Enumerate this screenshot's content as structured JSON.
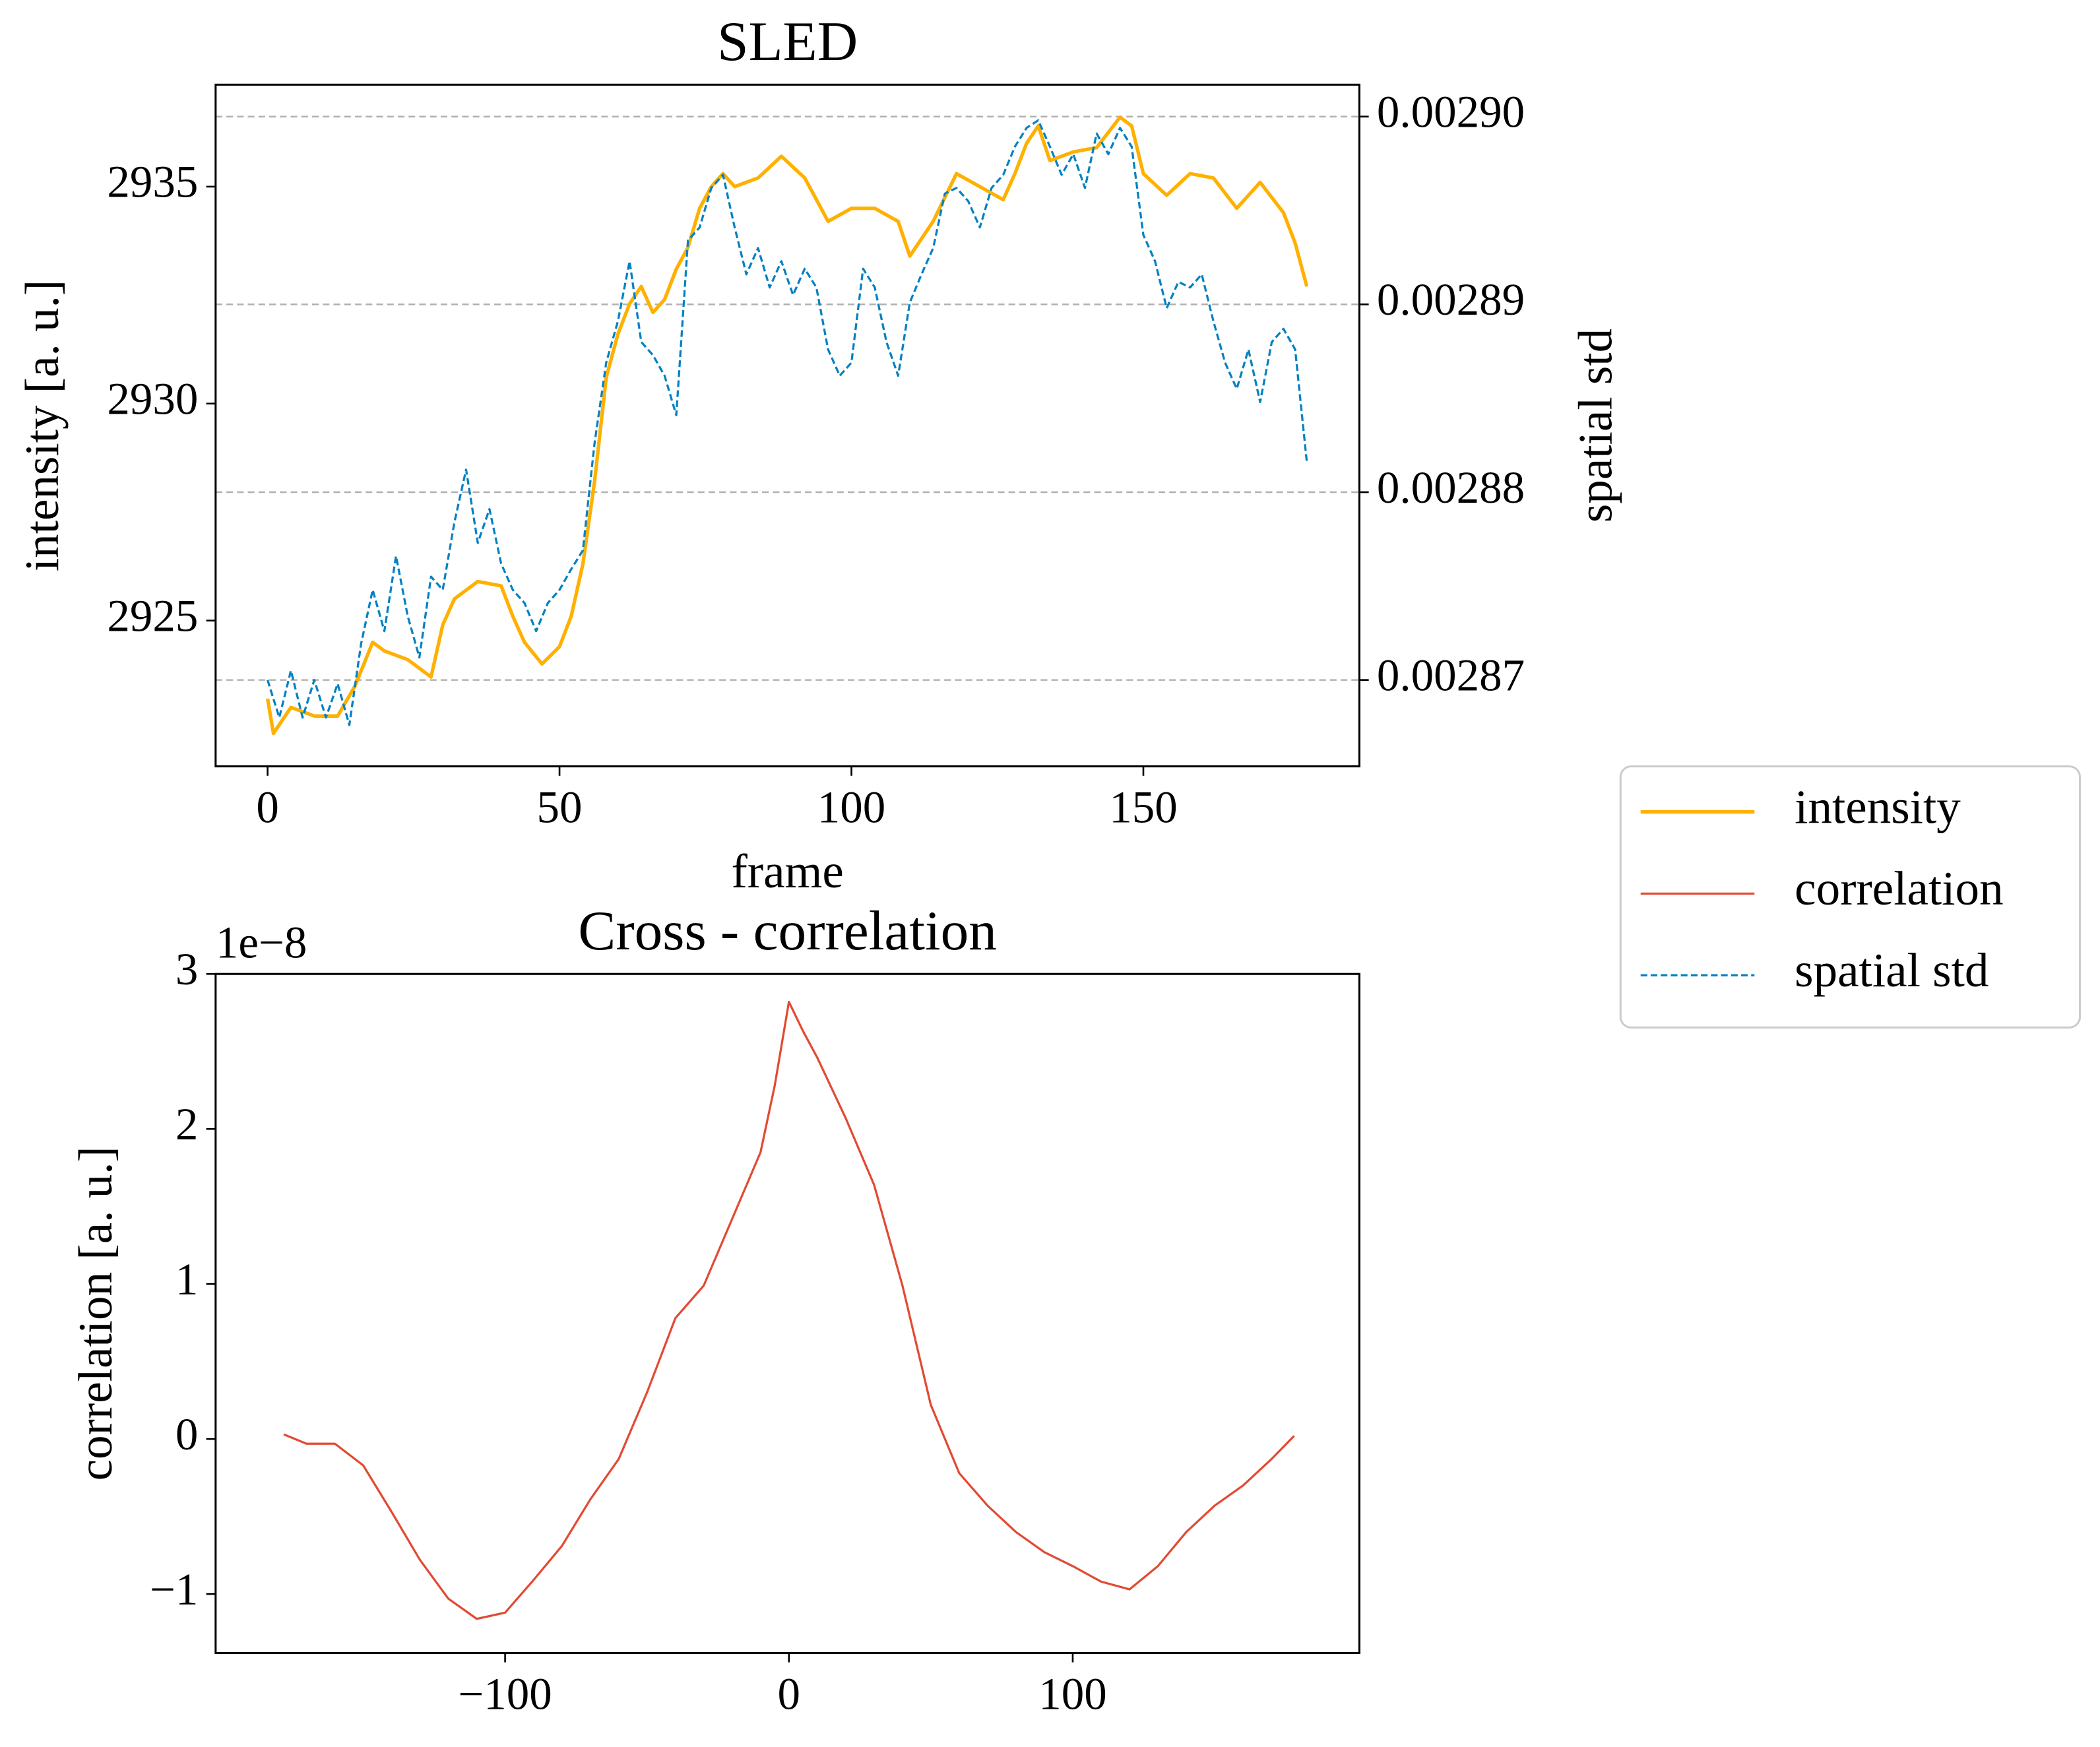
{
  "chart_data": [
    {
      "type": "line",
      "title": "SLED",
      "xlabel": "frame",
      "ylabel": "intensity [a. u.]",
      "y2label": "spatial std",
      "xlim": [
        -8.9,
        187
      ],
      "xticks": [
        0,
        50,
        100,
        150
      ],
      "ylim": [
        2921.64,
        2937.35
      ],
      "yticks": [
        2925,
        2930,
        2935
      ],
      "y2lim": [
        0.0028654,
        0.0029017
      ],
      "y2ticks": [
        {
          "value": 0.0029,
          "label": "0.00290"
        },
        0.00289,
        0.00288,
        0.00287
      ],
      "grid": "y2",
      "legend": "outside right",
      "series": [
        {
          "name": "intensity",
          "color": "#ffb000",
          "linestyle": "solid",
          "linewidth": 2.6,
          "x": [
            0,
            1,
            4,
            8,
            12,
            15,
            18,
            20,
            24,
            28,
            30,
            32,
            36,
            40,
            42,
            44,
            47,
            50,
            52,
            54,
            56,
            58,
            60,
            62,
            64,
            66,
            68,
            70,
            72,
            74,
            76,
            78,
            80,
            84,
            88,
            92,
            96,
            100,
            104,
            108,
            110,
            114,
            118,
            122,
            126,
            128,
            130,
            132,
            134,
            138,
            142,
            146,
            148,
            150,
            154,
            158,
            162,
            166,
            170,
            174,
            176,
            178
          ],
          "values": [
            2923.2,
            2922.4,
            2923.0,
            2922.8,
            2922.8,
            2923.5,
            2924.5,
            2924.3,
            2924.1,
            2923.7,
            2924.9,
            2925.5,
            2925.9,
            2925.8,
            2925.1,
            2924.5,
            2924.0,
            2924.4,
            2925.1,
            2926.3,
            2928.2,
            2930.6,
            2931.6,
            2932.3,
            2932.7,
            2932.1,
            2932.4,
            2933.1,
            2933.6,
            2934.5,
            2935.0,
            2935.3,
            2935.0,
            2935.2,
            2935.7,
            2935.2,
            2934.2,
            2934.5,
            2934.5,
            2934.2,
            2933.4,
            2934.2,
            2935.3,
            2935.0,
            2934.7,
            2935.3,
            2936.0,
            2936.4,
            2935.6,
            2935.8,
            2935.9,
            2936.6,
            2936.4,
            2935.3,
            2934.8,
            2935.3,
            2935.2,
            2934.5,
            2935.1,
            2934.4,
            2933.7,
            2932.7
          ]
        },
        {
          "name": "spatial std",
          "color": "#0081c3",
          "linestyle": "dashed",
          "linewidth": 1.6,
          "axis": "y2",
          "x": [
            0,
            2,
            4,
            6,
            8,
            10,
            12,
            14,
            16,
            18,
            20,
            22,
            24,
            26,
            28,
            30,
            32,
            34,
            36,
            38,
            40,
            42,
            44,
            46,
            48,
            50,
            52,
            54,
            56,
            58,
            60,
            62,
            64,
            66,
            68,
            70,
            72,
            74,
            76,
            78,
            80,
            82,
            84,
            86,
            88,
            90,
            92,
            94,
            96,
            98,
            100,
            102,
            104,
            106,
            108,
            110,
            112,
            114,
            116,
            118,
            120,
            122,
            124,
            126,
            128,
            130,
            132,
            134,
            136,
            138,
            140,
            142,
            144,
            146,
            148,
            150,
            152,
            154,
            156,
            158,
            160,
            162,
            164,
            166,
            168,
            170,
            172,
            174,
            176,
            178
          ],
          "values": [
            0.00287,
            0.002868,
            0.0028705,
            0.002868,
            0.00287,
            0.002868,
            0.0028698,
            0.0028676,
            0.0028719,
            0.0028748,
            0.0028726,
            0.0028766,
            0.0028734,
            0.0028712,
            0.0028755,
            0.0028748,
            0.0028784,
            0.0028812,
            0.0028773,
            0.0028791,
            0.0028762,
            0.0028748,
            0.0028741,
            0.0028726,
            0.0028741,
            0.0028748,
            0.0028759,
            0.0028769,
            0.0028826,
            0.0028869,
            0.0028891,
            0.0028923,
            0.002888,
            0.0028873,
            0.0028862,
            0.0028841,
            0.0028934,
            0.0028941,
            0.0028962,
            0.0028969,
            0.0028941,
            0.0028916,
            0.002893,
            0.0028909,
            0.0028923,
            0.0028905,
            0.0028919,
            0.0028909,
            0.0028876,
            0.0028862,
            0.0028869,
            0.0028919,
            0.0028909,
            0.002888,
            0.0028862,
            0.0028901,
            0.0028916,
            0.002893,
            0.0028959,
            0.0028962,
            0.0028955,
            0.0028941,
            0.0028962,
            0.0028969,
            0.0028984,
            0.0028994,
            0.0028998,
            0.0028984,
            0.0028969,
            0.002898,
            0.0028962,
            0.0028991,
            0.002898,
            0.0028994,
            0.0028984,
            0.0028937,
            0.0028923,
            0.0028898,
            0.0028912,
            0.0028909,
            0.0028916,
            0.0028891,
            0.0028869,
            0.0028855,
            0.0028876,
            0.0028848,
            0.002888,
            0.0028887,
            0.0028876,
            0.0028816
          ]
        }
      ]
    },
    {
      "type": "line",
      "title": "Cross - correlation",
      "ylabel": "correlation [a. u.]",
      "offset_text": "1e−8",
      "xlim": [
        -202,
        201
      ],
      "xticks": [
        {
          "value": -100,
          "label": "−100"
        },
        0,
        100
      ],
      "ylim": [
        -1.38,
        3.0
      ],
      "yticks": [
        {
          "value": -1,
          "label": "−1"
        },
        0,
        1,
        2,
        3
      ],
      "series": [
        {
          "name": "correlation",
          "color": "#e24a33",
          "linestyle": "solid",
          "linewidth": 1.6,
          "x": [
            -178,
            -170,
            -160,
            -150,
            -140,
            -130,
            -120,
            -110,
            -100,
            -90,
            -80,
            -70,
            -60,
            -50,
            -40,
            -30,
            -20,
            -10,
            -5,
            0,
            5,
            10,
            20,
            30,
            40,
            50,
            60,
            70,
            80,
            90,
            100,
            110,
            120,
            130,
            140,
            150,
            160,
            170,
            178
          ],
          "values": [
            0.03,
            -0.03,
            -0.03,
            -0.17,
            -0.47,
            -0.78,
            -1.03,
            -1.16,
            -1.12,
            -0.91,
            -0.69,
            -0.39,
            -0.13,
            0.3,
            0.78,
            0.99,
            1.42,
            1.85,
            2.28,
            2.82,
            2.63,
            2.46,
            2.07,
            1.64,
            0.99,
            0.22,
            -0.22,
            -0.43,
            -0.6,
            -0.73,
            -0.82,
            -0.92,
            -0.97,
            -0.82,
            -0.6,
            -0.43,
            -0.3,
            -0.13,
            0.02
          ]
        }
      ]
    }
  ]
}
